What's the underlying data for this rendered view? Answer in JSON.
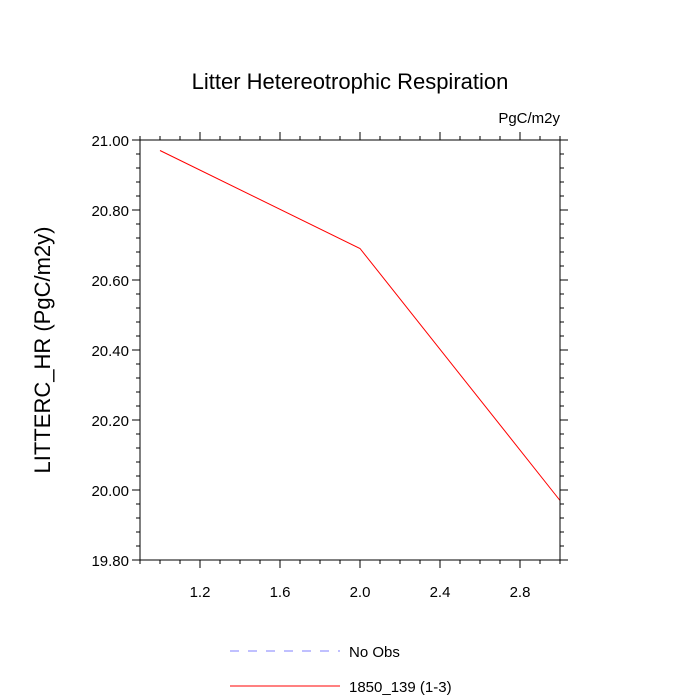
{
  "chart_data": {
    "type": "line",
    "title": "Litter Hetereotrophic Respiration",
    "units_label": "PgC/m2y",
    "ylabel": "LITTERC_HR  (PgC/m2y)",
    "xlabel": "",
    "xlim": [
      0.9,
      3.0
    ],
    "ylim": [
      19.8,
      21.0
    ],
    "x_ticks": [
      1.2,
      1.6,
      2.0,
      2.4,
      2.8
    ],
    "x_tick_labels": [
      "1.2",
      "1.6",
      "2.0",
      "2.4",
      "2.8"
    ],
    "y_ticks": [
      19.8,
      20.0,
      20.2,
      20.4,
      20.6,
      20.8,
      21.0
    ],
    "y_tick_labels": [
      "19.80",
      "20.00",
      "20.20",
      "20.40",
      "20.60",
      "20.80",
      "21.00"
    ],
    "series": [
      {
        "name": "1850_139 (1-3)",
        "color": "#ff0000",
        "dash": "solid",
        "x": [
          1.0,
          2.0,
          3.0
        ],
        "values": [
          20.97,
          20.69,
          19.97
        ]
      }
    ],
    "legend": [
      {
        "label": "No Obs",
        "color": "#8080ff",
        "dash": "dashed"
      },
      {
        "label": "1850_139 (1-3)",
        "color": "#ff0000",
        "dash": "solid"
      }
    ],
    "legend_position": "bottom-center"
  }
}
